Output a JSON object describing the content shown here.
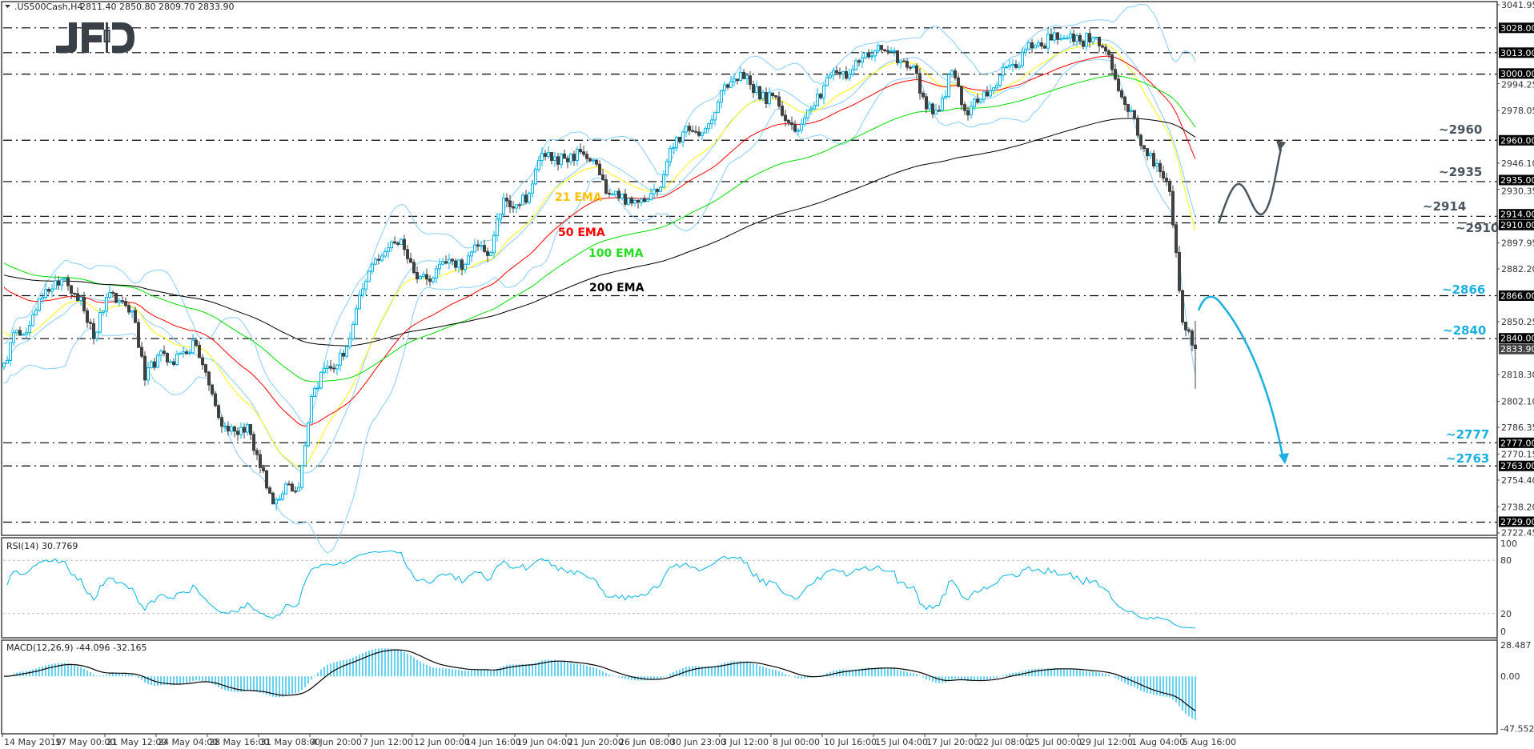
{
  "header": {
    "symbol": ".US500Cash,H4",
    "ohlc": "2811.40 2850.80 2809.70 2833.90"
  },
  "logo": {
    "text": "JFD",
    "color": "#3a4048"
  },
  "chart_data": {
    "type": "candlestick",
    "symbol": ".US500Cash",
    "timeframe": "H4",
    "ylim": [
      2722.45,
      3041.95
    ],
    "x_range": [
      "14 May 2019",
      "5 Aug 16:00"
    ],
    "last_price": "2833.90",
    "close_samples": [
      2825,
      2845,
      2848,
      2865,
      2875,
      2872,
      2865,
      2840,
      2865,
      2863,
      2857,
      2815,
      2830,
      2826,
      2832,
      2836,
      2812,
      2787,
      2784,
      2788,
      2762,
      2740,
      2752,
      2750,
      2805,
      2822,
      2824,
      2840,
      2870,
      2888,
      2895,
      2900,
      2880,
      2876,
      2885,
      2887,
      2885,
      2896,
      2892,
      2925,
      2921,
      2928,
      2952,
      2950,
      2947,
      2953,
      2948,
      2928,
      2925,
      2922,
      2923,
      2929,
      2955,
      2965,
      2965,
      2970,
      2990,
      2997,
      2999,
      2985,
      2987,
      2972,
      2966,
      2979,
      2993,
      3001,
      3000,
      3010,
      3014,
      3014,
      3008,
      3005,
      2979,
      2978,
      3002,
      2978,
      2983,
      2990,
      3004,
      3004,
      3019,
      3017,
      3025,
      3022,
      3020,
      3022,
      3014,
      2990,
      2978,
      2955,
      2946,
      2929,
      2850,
      2834
    ],
    "x_tick_labels": [
      "14 May 2019",
      "17 May 00:00",
      "21 May 12:00",
      "24 May 04:00",
      "28 May 16:00",
      "31 May 08:00",
      "4 Jun 20:00",
      "7 Jun 12:00",
      "12 Jun 00:00",
      "14 Jun 16:00",
      "19 Jun 04:00",
      "21 Jun 20:00",
      "26 Jun 08:00",
      "30 Jun 23:00",
      "3 Jul 12:00",
      "8 Jul 00:00",
      "10 Jul 16:00",
      "15 Jul 04:00",
      "17 Jul 20:00",
      "22 Jul 08:00",
      "25 Jul 00:00",
      "29 Jul 12:00",
      "1 Aug 04:00",
      "5 Aug 16:00"
    ],
    "y_tick_labels": [
      "3041.95",
      "2994.25",
      "2978.05",
      "2946.10",
      "2930.35",
      "2897.95",
      "2882.20",
      "2850.25",
      "2818.30",
      "2802.10",
      "2786.35",
      "2770.15",
      "2754.40",
      "2738.20",
      "2722.45"
    ],
    "levels": [
      "3028.00",
      "3013.00",
      "3000.00",
      "2960.00",
      "2935.00",
      "2914.00",
      "2910.00",
      "2866.00",
      "2840.00",
      "2777.00",
      "2763.00",
      "2729.00"
    ],
    "annotations": [
      {
        "text": "~2960",
        "level": 2960,
        "color": "#4a5560"
      },
      {
        "text": "~2935",
        "level": 2935,
        "color": "#4a5560"
      },
      {
        "text": "~2914",
        "level": 2914,
        "color": "#4a5560"
      },
      {
        "text": "~2910",
        "level": 2910,
        "color": "#4a5560"
      },
      {
        "text": "~2866",
        "level": 2866,
        "color": "#1ab0e0"
      },
      {
        "text": "~2840",
        "level": 2840,
        "color": "#1ab0e0"
      },
      {
        "text": "~2777",
        "level": 2777,
        "color": "#1ab0e0"
      },
      {
        "text": "~2763",
        "level": 2763,
        "color": "#1ab0e0"
      }
    ],
    "scenario_arrows": [
      {
        "direction": "up",
        "from": 2910,
        "via": [
          2935,
          2914
        ],
        "to": 2960,
        "color": "#4a5560"
      },
      {
        "direction": "down",
        "from": 2845,
        "via": [
          2866
        ],
        "to": 2763,
        "color": "#1ab0e0"
      }
    ],
    "indicators": [
      {
        "label": "21 EMA",
        "period": 21,
        "line_color": "#ffff00",
        "label_color": "#ffc000"
      },
      {
        "label": "50 EMA",
        "period": 50,
        "line_color": "#ff0000",
        "label_color": "#ff0000"
      },
      {
        "label": "100 EMA",
        "period": 100,
        "line_color": "#00e000",
        "label_color": "#22dd22"
      },
      {
        "label": "200 EMA",
        "period": 200,
        "line_color": "#000000",
        "label_color": "#000000"
      }
    ],
    "bollinger": {
      "period": 20,
      "deviation": 2,
      "color": "#87cefa"
    },
    "candle_colors": {
      "bull": "#00b4e6",
      "bear": "#404040"
    },
    "rsi": {
      "label": "RSI(14) 30.7769",
      "period": 14,
      "levels": [
        80,
        20
      ],
      "axis_labels": [
        "100",
        "80",
        "20",
        "0"
      ],
      "ylim": [
        0,
        100
      ],
      "color": "#00b4e6"
    },
    "macd": {
      "label": "MACD(12,26,9) -44.096 -32.165",
      "params": [
        12,
        26,
        9
      ],
      "axis_labels": [
        "28.487",
        "0.00",
        "-47.552"
      ],
      "ylim": [
        -47.552,
        28.487
      ],
      "hist_color": "#00b4e6",
      "signal_color": "#000000"
    }
  }
}
